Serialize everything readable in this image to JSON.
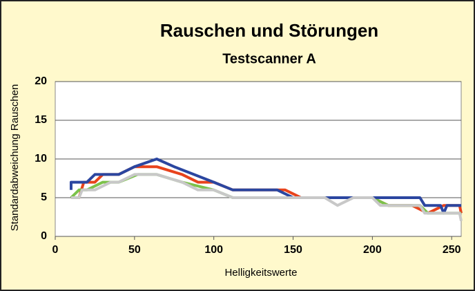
{
  "chart_data": {
    "type": "line",
    "title": "Rauschen und Störungen",
    "subtitle": "Testscanner A",
    "xlabel": "Helligkeitswerte",
    "ylabel": "Standardabweichung Rauschen",
    "xlim": [
      0,
      256
    ],
    "ylim": [
      0,
      20
    ],
    "xticks": [
      0,
      50,
      100,
      150,
      200,
      250
    ],
    "yticks": [
      0,
      5,
      10,
      15,
      20
    ],
    "grid": true,
    "series": [
      {
        "color": "#e8431c",
        "x": [
          10,
          15,
          18,
          25,
          30,
          40,
          50,
          64,
          80,
          90,
          100,
          112,
          145,
          155,
          200,
          210,
          225,
          235,
          245,
          255,
          256
        ],
        "values": [
          5,
          5,
          7,
          7,
          8,
          8,
          9,
          9,
          8,
          7,
          7,
          6,
          6,
          5,
          5,
          4,
          4,
          3,
          4,
          4,
          3
        ]
      },
      {
        "color": "#7cc24a",
        "x": [
          10,
          15,
          20,
          30,
          40,
          52,
          64,
          80,
          100,
          112,
          200,
          210,
          230,
          235,
          256
        ],
        "values": [
          5,
          6,
          6,
          7,
          7,
          8,
          8,
          7,
          6,
          5,
          5,
          4,
          4,
          3,
          3
        ]
      },
      {
        "color": "#2b46a0",
        "x": [
          10,
          10,
          20,
          25,
          40,
          50,
          64,
          75,
          100,
          112,
          140,
          150,
          230,
          233,
          243,
          245,
          247,
          256
        ],
        "values": [
          6,
          7,
          7,
          8,
          8,
          9,
          10,
          9,
          7,
          6,
          6,
          5,
          5,
          4,
          4,
          3,
          4,
          4
        ]
      },
      {
        "color": "#c8c8c8",
        "x": [
          10,
          15,
          17,
          25,
          35,
          40,
          50,
          64,
          80,
          90,
          100,
          112,
          170,
          178,
          188,
          200,
          205,
          230,
          233,
          255,
          256
        ],
        "values": [
          5,
          5,
          6,
          6,
          7,
          7,
          8,
          8,
          7,
          6,
          6,
          5,
          5,
          4,
          5,
          5,
          4,
          4,
          3,
          3,
          2
        ]
      }
    ]
  }
}
